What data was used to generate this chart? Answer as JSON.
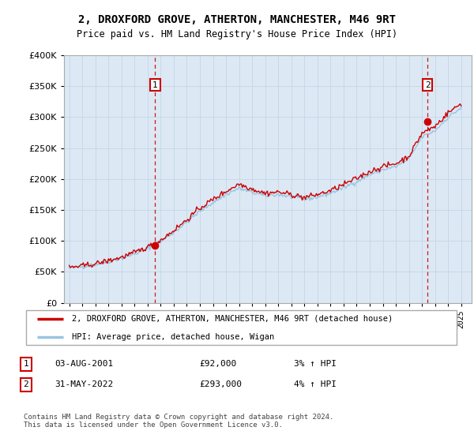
{
  "title": "2, DROXFORD GROVE, ATHERTON, MANCHESTER, M46 9RT",
  "subtitle": "Price paid vs. HM Land Registry's House Price Index (HPI)",
  "background_color": "#dce9f5",
  "grid_color": "#c8d8e8",
  "line1_color": "#cc0000",
  "line2_color": "#99c4e0",
  "sale1_x": 2001.58,
  "sale1_price": 92000,
  "sale2_x": 2022.42,
  "sale2_price": 293000,
  "legend_line1": "2, DROXFORD GROVE, ATHERTON, MANCHESTER, M46 9RT (detached house)",
  "legend_line2": "HPI: Average price, detached house, Wigan",
  "note1_label": "1",
  "note1_date": "03-AUG-2001",
  "note1_price": "£92,000",
  "note1_hpi": "3% ↑ HPI",
  "note2_label": "2",
  "note2_date": "31-MAY-2022",
  "note2_price": "£293,000",
  "note2_hpi": "4% ↑ HPI",
  "footer": "Contains HM Land Registry data © Crown copyright and database right 2024.\nThis data is licensed under the Open Government Licence v3.0.",
  "ylim": [
    0,
    400000
  ],
  "yticks": [
    0,
    50000,
    100000,
    150000,
    200000,
    250000,
    300000,
    350000,
    400000
  ],
  "xlim_min": 1994.6,
  "xlim_max": 2025.8,
  "xstart": 1995,
  "xend": 2025
}
